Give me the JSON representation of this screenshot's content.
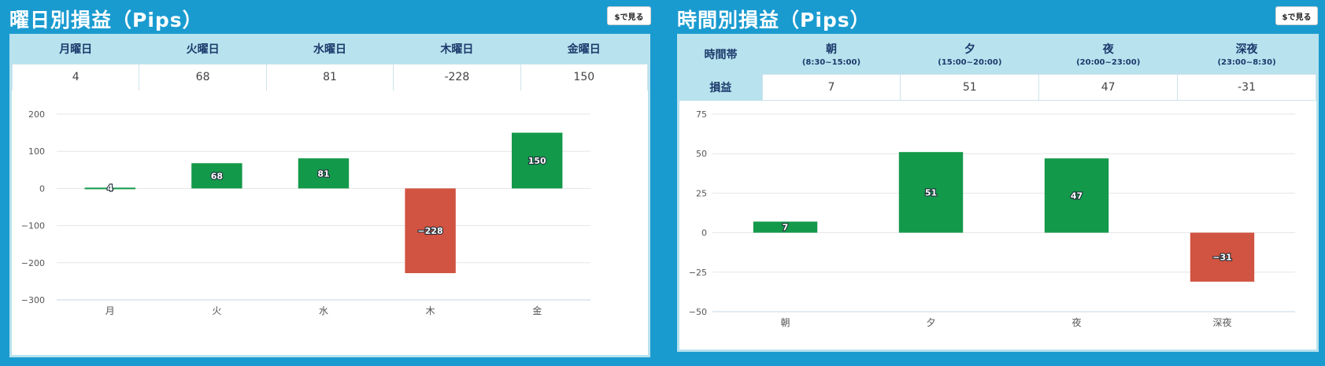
{
  "weekday": {
    "title": "曜日別損益（Pips）",
    "button_label": "$で見る",
    "headers": [
      "月曜日",
      "火曜日",
      "水曜日",
      "木曜日",
      "金曜日"
    ],
    "values": [
      "4",
      "68",
      "81",
      "-228",
      "150"
    ]
  },
  "timeband": {
    "title": "時間別損益（Pips）",
    "button_label": "$で見る",
    "row_header": "時間帯",
    "value_row_header": "損益",
    "headers": [
      {
        "label": "朝",
        "range": "(8:30~15:00)"
      },
      {
        "label": "夕",
        "range": "(15:00~20:00)"
      },
      {
        "label": "夜",
        "range": "(20:00~23:00)"
      },
      {
        "label": "深夜",
        "range": "(23:00~8:30)"
      }
    ],
    "values": [
      "7",
      "51",
      "47",
      "-31"
    ]
  },
  "colors": {
    "positive": "#13994a",
    "negative": "#d15341",
    "grid": "#e5e5e5",
    "axis_text": "#555555"
  },
  "chart_data": [
    {
      "type": "bar",
      "categories": [
        "月",
        "火",
        "水",
        "木",
        "金"
      ],
      "values": [
        4,
        68,
        81,
        -228,
        150
      ],
      "data_labels": [
        "4",
        "68",
        "81",
        "−228",
        "150"
      ],
      "title": "曜日別損益（Pips）",
      "xlabel": "",
      "ylabel": "",
      "ylim": [
        -300,
        200
      ],
      "yticks": [
        200,
        100,
        0,
        -100,
        -200,
        -300
      ],
      "ytick_labels": [
        "200",
        "100",
        "0",
        "−100",
        "−200",
        "−300"
      ],
      "grid": true,
      "legend": "none"
    },
    {
      "type": "bar",
      "categories": [
        "朝",
        "夕",
        "夜",
        "深夜"
      ],
      "values": [
        7,
        51,
        47,
        -31
      ],
      "data_labels": [
        "7",
        "51",
        "47",
        "−31"
      ],
      "title": "時間別損益（Pips）",
      "xlabel": "",
      "ylabel": "",
      "ylim": [
        -50,
        75
      ],
      "yticks": [
        75,
        50,
        25,
        0,
        -25,
        -50
      ],
      "ytick_labels": [
        "75",
        "50",
        "25",
        "0",
        "−25",
        "−50"
      ],
      "grid": true,
      "legend": "none"
    }
  ]
}
